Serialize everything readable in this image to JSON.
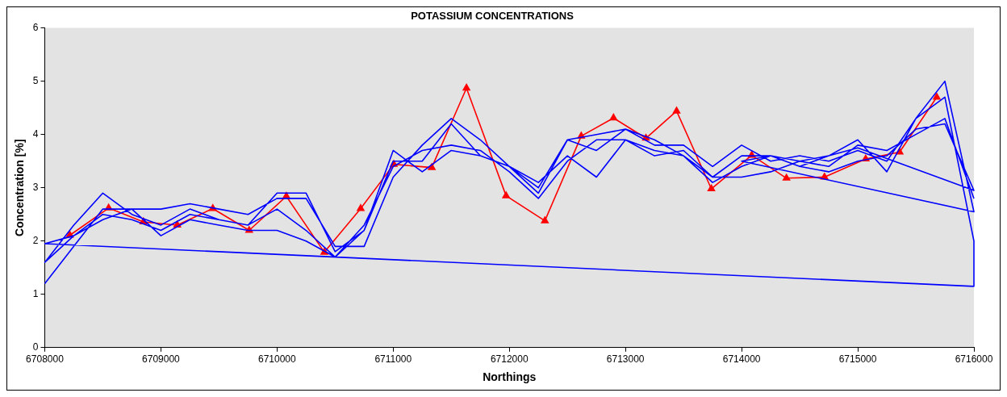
{
  "chart_data": {
    "type": "line",
    "title": "POTASSIUM CONCENTRATIONS",
    "xlabel": "Northings",
    "ylabel": "Concentration [%]",
    "xlim": [
      6708000,
      6716000
    ],
    "xticks": [
      6708000,
      6709000,
      6710000,
      6711000,
      6712000,
      6713000,
      6714000,
      6715000,
      6716000
    ],
    "ylim": [
      0,
      6
    ],
    "yticks": [
      0,
      1,
      2,
      3,
      4,
      5,
      6
    ],
    "grid": false,
    "legend": false,
    "series": [
      {
        "color": "#0000ff",
        "marker": "none",
        "x": [
          6708000,
          6708250,
          6708500,
          6708750,
          6709000,
          6709250,
          6709500,
          6709750,
          6710000,
          6710250,
          6710500,
          6710750,
          6711000,
          6711250,
          6711500,
          6711750,
          6712000,
          6712250,
          6712500,
          6712750,
          6713000,
          6713250,
          6713500,
          6713750,
          6714000,
          6714250,
          6714500,
          6714750,
          6715000,
          6715250,
          6715500,
          6715750,
          6716000,
          6714000,
          6714250,
          6714500,
          6714750,
          6715000,
          6716000,
          6715750,
          6715500,
          6715250,
          6715000,
          6714750,
          6714500,
          6714250,
          6714000,
          6713750,
          6713500,
          6713250,
          6713000,
          6712750,
          6712500,
          6712250,
          6712000,
          6711750,
          6711500,
          6711250,
          6711000,
          6710750,
          6710500,
          6710250,
          6710000,
          6709750,
          6709500,
          6709250,
          6709000,
          6708750,
          6708500,
          6708250,
          6708000,
          6708000,
          6708250,
          6708500,
          6708750,
          6709000,
          6709250,
          6709500,
          6709750,
          6710000,
          6710250,
          6710500,
          6710750,
          6711000,
          6711250,
          6711500,
          6711750,
          6712000,
          6712250,
          6712500,
          6712750,
          6713000,
          6713250,
          6713500,
          6713750,
          6714000,
          6714250,
          6714500,
          6714750,
          6715000,
          6715250,
          6715500,
          6715750,
          6716000,
          6716000,
          6708000,
          6708250,
          6708500,
          6708750,
          6709000,
          6709250,
          6709500,
          6709750,
          6710000,
          6710250,
          6710500,
          6710750,
          6711000,
          6711250,
          6711500,
          6711750,
          6712000,
          6712250,
          6712500,
          6712750,
          6713000,
          6713250,
          6713500,
          6713750,
          6714000,
          6714250,
          6714500,
          6714750,
          6715000,
          6715250,
          6715500,
          6715750,
          6716000
        ],
        "values": [
          1.2,
          1.9,
          2.6,
          2.6,
          2.6,
          2.7,
          2.6,
          2.5,
          2.8,
          2.8,
          1.9,
          1.9,
          3.2,
          3.8,
          4.3,
          3.9,
          3.4,
          3.0,
          3.9,
          4.0,
          4.1,
          3.8,
          3.8,
          3.4,
          3.8,
          3.5,
          3.6,
          3.5,
          3.7,
          3.5,
          4.3,
          5.0,
          2.55,
          3.5,
          3.6,
          3.5,
          3.6,
          3.75,
          2.95,
          4.2,
          4.1,
          3.6,
          3.5,
          3.3,
          3.4,
          3.6,
          3.4,
          3.1,
          3.6,
          3.7,
          3.9,
          3.2,
          3.6,
          3.1,
          3.4,
          3.6,
          3.7,
          3.3,
          3.7,
          2.2,
          1.7,
          2.2,
          2.6,
          2.3,
          2.4,
          2.5,
          2.2,
          2.4,
          2.5,
          2.1,
          1.6,
          1.6,
          2.3,
          2.9,
          2.5,
          2.3,
          2.6,
          2.4,
          2.3,
          2.9,
          2.9,
          1.8,
          2.2,
          3.5,
          3.5,
          4.2,
          3.6,
          3.4,
          2.9,
          3.9,
          3.7,
          4.1,
          3.9,
          3.6,
          3.2,
          3.6,
          3.6,
          3.4,
          3.6,
          3.9,
          3.3,
          4.3,
          4.7,
          2.0,
          1.15,
          1.95,
          2.1,
          2.4,
          2.6,
          2.1,
          2.4,
          2.3,
          2.2,
          2.2,
          2.0,
          1.7,
          2.3,
          3.4,
          3.7,
          3.8,
          3.7,
          3.3,
          2.8,
          3.5,
          3.9,
          3.9,
          3.6,
          3.7,
          3.2,
          3.2,
          3.3,
          3.5,
          3.4,
          3.8,
          3.7,
          4.0,
          4.3,
          2.8
        ]
      },
      {
        "color": "#ff0000",
        "marker": "triangle",
        "x": [
          6708216,
          6708550,
          6708849,
          6709141,
          6709447,
          6709760,
          6710080,
          6710407,
          6710720,
          6711005,
          6711332,
          6711631,
          6711972,
          6712306,
          6712619,
          6712897,
          6713176,
          6713440,
          6713739,
          6714087,
          6714386,
          6714713,
          6715068,
          6715360,
          6715680
        ],
        "values": [
          2.11,
          2.62,
          2.36,
          2.3,
          2.61,
          2.2,
          2.84,
          1.79,
          2.61,
          3.44,
          3.38,
          4.87,
          2.85,
          2.38,
          3.97,
          4.31,
          3.93,
          4.44,
          2.98,
          3.61,
          3.18,
          3.2,
          3.54,
          3.67,
          4.7
        ]
      }
    ]
  }
}
